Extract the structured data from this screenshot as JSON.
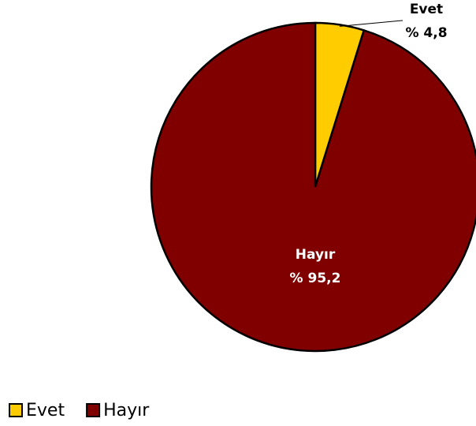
{
  "chart_data": {
    "type": "pie",
    "categories": [
      "Evet",
      "Hayır"
    ],
    "values": [
      4.8,
      95.2
    ],
    "value_labels": [
      "% 4,8",
      "% 95,2"
    ],
    "colors": [
      "#ffcc00",
      "#800000"
    ],
    "legend": "bottom-left"
  }
}
